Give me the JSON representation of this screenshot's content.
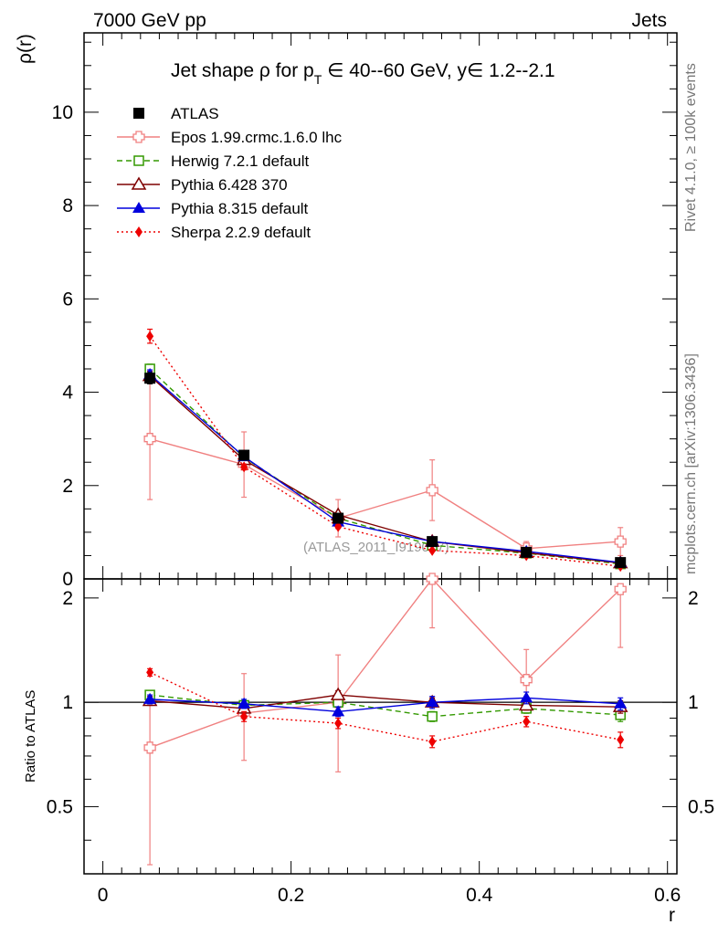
{
  "header": {
    "left": "7000 GeV pp",
    "right": "Jets"
  },
  "side_labels": {
    "rivet": "Rivet 4.1.0, ≥ 100k events",
    "mcplots": "mcplots.cern.ch [arXiv:1306.3436]"
  },
  "watermark": "(ATLAS_2011_I919017)",
  "chart_data": [
    {
      "type": "line",
      "title": "Jet shape ρ for p_T ∈ 40--60 GeV, y∈ 1.2--2.1",
      "title_parts": {
        "a": "Jet shape ρ for p",
        "sub": "T",
        "b": " ∈ 40--60 GeV, y∈ 1.2--2.1"
      },
      "xlabel": "r",
      "ylabel": "ρ(r)",
      "xlim": [
        -0.02,
        0.61
      ],
      "ylim": [
        0,
        11.7
      ],
      "xticks": [
        {
          "v": 0,
          "label": "0"
        },
        {
          "v": 0.2,
          "label": "0.2"
        },
        {
          "v": 0.4,
          "label": "0.4"
        },
        {
          "v": 0.6,
          "label": "0.6"
        }
      ],
      "yticks": [
        {
          "v": 0,
          "label": "0"
        },
        {
          "v": 2,
          "label": "2"
        },
        {
          "v": 4,
          "label": "4"
        },
        {
          "v": 6,
          "label": "6"
        },
        {
          "v": 8,
          "label": "8"
        },
        {
          "v": 10,
          "label": "10"
        }
      ],
      "x": [
        0.05,
        0.15,
        0.25,
        0.35,
        0.45,
        0.55
      ],
      "series": [
        {
          "name": "ATLAS",
          "color": "#000000",
          "marker": "square",
          "dash": "none",
          "values": [
            4.3,
            2.65,
            1.3,
            0.8,
            0.57,
            0.35
          ],
          "err": [
            0.12,
            0.08,
            0.05,
            0.03,
            0.02,
            0.02
          ]
        },
        {
          "name": "Epos 1.99.crmc.1.6.0 lhc",
          "color": "#f08080",
          "marker": "cross-square",
          "dash": "solid",
          "values": [
            3.0,
            2.45,
            1.3,
            1.9,
            0.65,
            0.8
          ],
          "err": [
            1.3,
            0.7,
            0.4,
            0.65,
            0.15,
            0.3
          ]
        },
        {
          "name": "Herwig 7.2.1 default",
          "color": "#339900",
          "marker": "open-square",
          "dash": "dashed",
          "values": [
            4.5,
            2.6,
            1.3,
            0.72,
            0.55,
            0.32
          ],
          "err": [
            0.1,
            0.05,
            0.03,
            0.02,
            0.02,
            0.02
          ]
        },
        {
          "name": "Pythia 6.428 370",
          "color": "#7f0000",
          "marker": "open-triangle",
          "dash": "solid",
          "values": [
            4.35,
            2.55,
            1.37,
            0.8,
            0.56,
            0.34
          ],
          "err": [
            0.1,
            0.05,
            0.04,
            0.02,
            0.02,
            0.02
          ]
        },
        {
          "name": "Pythia 8.315 default",
          "color": "#0000dd",
          "marker": "filled-triangle",
          "dash": "solid",
          "values": [
            4.38,
            2.62,
            1.22,
            0.8,
            0.59,
            0.35
          ],
          "err": [
            0.1,
            0.05,
            0.04,
            0.02,
            0.02,
            0.02
          ]
        },
        {
          "name": "Sherpa 2.2.9 default",
          "color": "#ee0000",
          "marker": "diamond",
          "dash": "dotted",
          "values": [
            5.2,
            2.4,
            1.12,
            0.61,
            0.5,
            0.27
          ],
          "err": [
            0.15,
            0.06,
            0.04,
            0.02,
            0.02,
            0.02
          ]
        }
      ]
    },
    {
      "type": "line",
      "title": "",
      "xlabel": "r",
      "ylabel": "Ratio to ATLAS",
      "xlim": [
        -0.02,
        0.61
      ],
      "ylim": [
        0.32,
        2.27
      ],
      "yscale": "log",
      "xticks": [
        {
          "v": 0,
          "label": "0"
        },
        {
          "v": 0.2,
          "label": "0.2"
        },
        {
          "v": 0.4,
          "label": "0.4"
        },
        {
          "v": 0.6,
          "label": "0.6"
        }
      ],
      "yticks": [
        {
          "v": 0.5,
          "label": "0.5"
        },
        {
          "v": 1,
          "label": "1"
        },
        {
          "v": 2,
          "label": "2"
        }
      ],
      "x": [
        0.05,
        0.15,
        0.25,
        0.35,
        0.45,
        0.55
      ],
      "series": [
        {
          "name": "Epos 1.99.crmc.1.6.0 lhc",
          "color": "#f08080",
          "marker": "cross-square",
          "dash": "solid",
          "values": [
            0.74,
            0.93,
            1.0,
            2.32,
            1.16,
            2.12
          ],
          "err_lo": [
            0.4,
            0.25,
            0.37,
            0.68,
            0.23,
            0.68
          ],
          "err_hi": [
            0.3,
            0.28,
            0.37,
            0.0,
            0.26,
            0.0
          ]
        },
        {
          "name": "Herwig 7.2.1 default",
          "color": "#339900",
          "marker": "open-square",
          "dash": "dashed",
          "values": [
            1.05,
            0.98,
            1.0,
            0.91,
            0.96,
            0.92
          ],
          "err_lo": [
            0.03,
            0.03,
            0.03,
            0.03,
            0.03,
            0.04
          ],
          "err_hi": [
            0.03,
            0.03,
            0.03,
            0.03,
            0.03,
            0.04
          ]
        },
        {
          "name": "Pythia 6.428 370",
          "color": "#7f0000",
          "marker": "open-triangle",
          "dash": "solid",
          "values": [
            1.01,
            0.96,
            1.05,
            1.0,
            0.98,
            0.97
          ],
          "err_lo": [
            0.03,
            0.03,
            0.03,
            0.03,
            0.03,
            0.04
          ],
          "err_hi": [
            0.03,
            0.03,
            0.03,
            0.03,
            0.03,
            0.04
          ]
        },
        {
          "name": "Pythia 8.315 default",
          "color": "#0000dd",
          "marker": "filled-triangle",
          "dash": "solid",
          "values": [
            1.02,
            0.99,
            0.94,
            1.0,
            1.03,
            0.99
          ],
          "err_lo": [
            0.03,
            0.03,
            0.03,
            0.04,
            0.04,
            0.04
          ],
          "err_hi": [
            0.03,
            0.03,
            0.03,
            0.04,
            0.04,
            0.04
          ]
        },
        {
          "name": "Sherpa 2.2.9 default",
          "color": "#ee0000",
          "marker": "diamond",
          "dash": "dotted",
          "values": [
            1.22,
            0.91,
            0.87,
            0.77,
            0.88,
            0.78
          ],
          "err_lo": [
            0.03,
            0.03,
            0.03,
            0.03,
            0.03,
            0.04
          ],
          "err_hi": [
            0.03,
            0.03,
            0.03,
            0.03,
            0.03,
            0.04
          ]
        }
      ]
    }
  ]
}
